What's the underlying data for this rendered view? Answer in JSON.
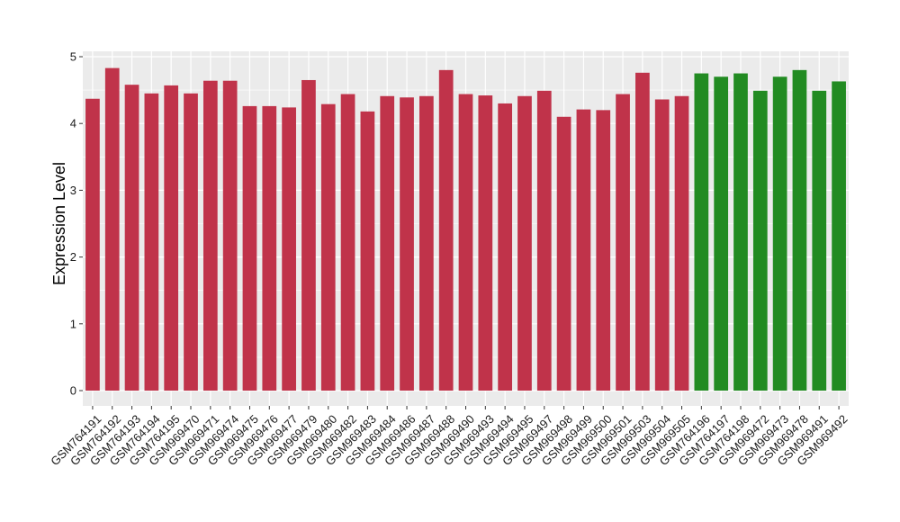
{
  "chart_data": {
    "type": "bar",
    "title": "",
    "xlabel": "",
    "ylabel": "Expression Level",
    "ylim": [
      0,
      5
    ],
    "yticks": [
      0,
      1,
      2,
      3,
      4,
      5
    ],
    "grid": true,
    "legend": "none",
    "categories": [
      "GSM764191",
      "GSM764192",
      "GSM764193",
      "GSM764194",
      "GSM764195",
      "GSM969470",
      "GSM969471",
      "GSM969474",
      "GSM969475",
      "GSM969476",
      "GSM969477",
      "GSM969479",
      "GSM969480",
      "GSM969482",
      "GSM969483",
      "GSM969484",
      "GSM969486",
      "GSM969487",
      "GSM969488",
      "GSM969490",
      "GSM969493",
      "GSM969494",
      "GSM969495",
      "GSM969497",
      "GSM969498",
      "GSM969499",
      "GSM969500",
      "GSM969501",
      "GSM969503",
      "GSM969504",
      "GSM969505",
      "GSM764196",
      "GSM764197",
      "GSM764198",
      "GSM969472",
      "GSM969473",
      "GSM969478",
      "GSM969491",
      "GSM969492"
    ],
    "values": [
      4.37,
      4.83,
      4.58,
      4.45,
      4.57,
      4.45,
      4.64,
      4.64,
      4.26,
      4.26,
      4.24,
      4.65,
      4.29,
      4.44,
      4.18,
      4.41,
      4.39,
      4.41,
      4.8,
      4.44,
      4.42,
      4.3,
      4.41,
      4.49,
      4.1,
      4.21,
      4.2,
      4.44,
      4.76,
      4.36,
      4.41,
      4.75,
      4.7,
      4.75,
      4.49,
      4.7,
      4.8,
      4.49,
      4.63
    ],
    "groups": [
      {
        "color": "#c0334a",
        "count": 31
      },
      {
        "color": "#228b22",
        "count": 8
      }
    ],
    "colors": {
      "panel_background": "#ebebeb",
      "gridline": "#ffffff",
      "tick_mark": "#333333",
      "text": "#1a1a1a"
    }
  }
}
